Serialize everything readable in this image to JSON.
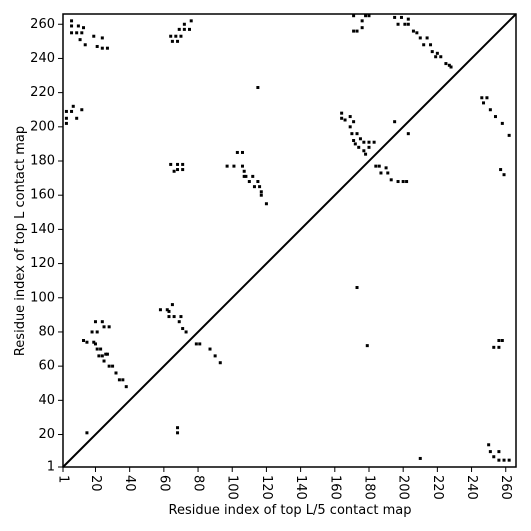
{
  "chart_data": {
    "type": "scatter",
    "xlabel": "Residue index of top L/5 contact map",
    "ylabel": "Residue index of top L contact map",
    "xlim": [
      1,
      266
    ],
    "ylim": [
      1,
      266
    ],
    "xticks": [
      1,
      20,
      40,
      60,
      80,
      100,
      120,
      140,
      160,
      180,
      200,
      220,
      240,
      260
    ],
    "yticks": [
      1,
      20,
      40,
      60,
      80,
      100,
      120,
      140,
      160,
      180,
      200,
      220,
      240,
      260
    ],
    "color": "#000000",
    "x": [
      6,
      6,
      6,
      9,
      12,
      13,
      11,
      14,
      19,
      21,
      24,
      24,
      27,
      10,
      3,
      3,
      3,
      6,
      7,
      9,
      12,
      64,
      65,
      67,
      69,
      70,
      72,
      72,
      75,
      76,
      68,
      64,
      66,
      68,
      68,
      71,
      71,
      115,
      97,
      101,
      103,
      106,
      106,
      107,
      107,
      108,
      110,
      112,
      113,
      115,
      116,
      117,
      117,
      120,
      164,
      164,
      166,
      169,
      169,
      171,
      170,
      171,
      172,
      173,
      174,
      175,
      177,
      177,
      178,
      180,
      183,
      180,
      184,
      186,
      187,
      190,
      191,
      193,
      197,
      200,
      202,
      195,
      203,
      171,
      171,
      173,
      176,
      176,
      178,
      180,
      195,
      197,
      199,
      201,
      203,
      203,
      206,
      208,
      210,
      212,
      214,
      216,
      217,
      219,
      222,
      225,
      227,
      228,
      220,
      246,
      247,
      249,
      251,
      254,
      258,
      262,
      257,
      259,
      13,
      15,
      18,
      19,
      20,
      21,
      21,
      22,
      24,
      25,
      23,
      25,
      26,
      28,
      30,
      32,
      34,
      36,
      38,
      28,
      20,
      24,
      27,
      58,
      62,
      63,
      65,
      66,
      69,
      70,
      71,
      73,
      63,
      79,
      81,
      87,
      90,
      93,
      173,
      179,
      210,
      15,
      68,
      68,
      250,
      251,
      253,
      256,
      259,
      262,
      256,
      256,
      253,
      258,
      256
    ],
    "values": [
      262,
      259,
      255,
      255,
      255,
      258,
      251,
      248,
      253,
      247,
      252,
      246,
      246,
      259,
      209,
      205,
      202,
      209,
      212,
      205,
      210,
      253,
      250,
      253,
      257,
      253,
      260,
      257,
      257,
      262,
      250,
      178,
      174,
      178,
      175,
      178,
      175,
      223,
      177,
      177,
      185,
      185,
      177,
      174,
      171,
      171,
      168,
      171,
      165,
      168,
      165,
      162,
      160,
      155,
      208,
      205,
      204,
      206,
      200,
      203,
      196,
      192,
      190,
      196,
      188,
      193,
      191,
      186,
      184,
      191,
      191,
      188,
      177,
      177,
      173,
      176,
      173,
      169,
      168,
      168,
      168,
      203,
      196,
      265,
      256,
      256,
      262,
      258,
      265,
      265,
      264,
      260,
      264,
      260,
      263,
      260,
      256,
      255,
      252,
      248,
      252,
      248,
      244,
      241,
      241,
      237,
      236,
      235,
      243,
      217,
      214,
      217,
      210,
      206,
      202,
      195,
      175,
      172,
      75,
      74,
      80,
      74,
      86,
      80,
      70,
      66,
      86,
      83,
      70,
      63,
      67,
      60,
      60,
      56,
      52,
      52,
      48,
      83,
      73,
      66,
      67,
      93,
      93,
      89,
      96,
      89,
      86,
      89,
      82,
      80,
      92,
      73,
      73,
      70,
      66,
      62,
      106,
      72,
      6,
      21,
      21,
      24,
      14,
      10,
      7,
      5,
      5,
      5,
      75,
      71,
      71,
      75,
      10
    ]
  }
}
